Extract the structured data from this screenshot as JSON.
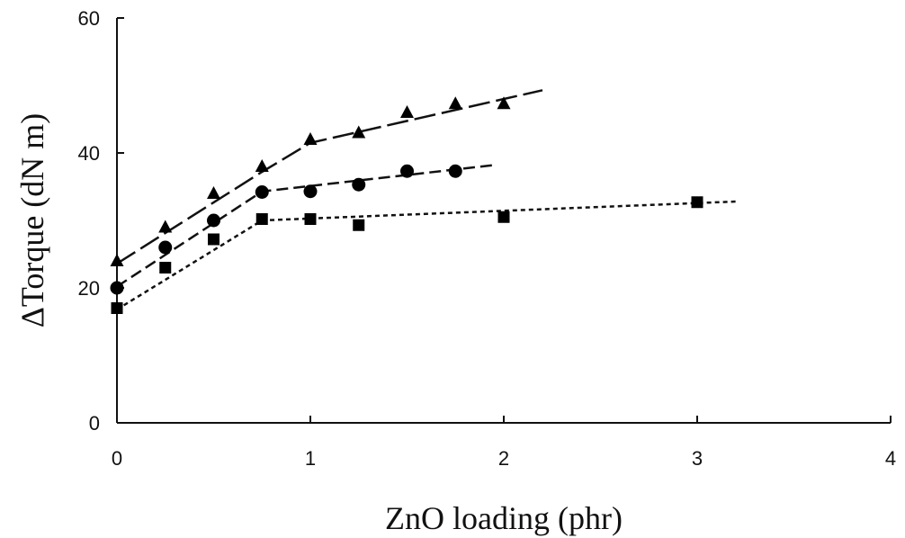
{
  "chart_data": {
    "type": "line",
    "xlabel": "ZnO loading (phr)",
    "ylabel": "ΔTorque (dN m)",
    "xlim": [
      0,
      4
    ],
    "ylim": [
      0,
      60
    ],
    "x_ticks": [
      "0",
      "1",
      "2",
      "3",
      "4"
    ],
    "y_ticks": [
      "0",
      "20",
      "40",
      "60"
    ],
    "grid": false,
    "legend": "none",
    "series": [
      {
        "marker": "triangle",
        "dash": "long-dash",
        "points": [
          [
            0,
            24
          ],
          [
            0.25,
            29
          ],
          [
            0.5,
            34
          ],
          [
            0.75,
            38
          ],
          [
            1.0,
            42
          ],
          [
            1.25,
            43
          ],
          [
            1.5,
            46
          ],
          [
            1.75,
            47.3
          ],
          [
            2.0,
            47.3
          ]
        ],
        "trend": [
          [
            0,
            23.6
          ],
          [
            0.75,
            37.2
          ],
          [
            1.0,
            41.5
          ],
          [
            2.2,
            49.3
          ]
        ]
      },
      {
        "marker": "circle",
        "dash": "medium-dash",
        "points": [
          [
            0,
            20
          ],
          [
            0.25,
            26
          ],
          [
            0.5,
            30
          ],
          [
            0.75,
            34.2
          ],
          [
            1.0,
            34.3
          ],
          [
            1.25,
            35.3
          ],
          [
            1.5,
            37.3
          ],
          [
            1.75,
            37.3
          ]
        ],
        "trend": [
          [
            0,
            20.2
          ],
          [
            0.75,
            34.3
          ],
          [
            1.95,
            38.2
          ]
        ]
      },
      {
        "marker": "square",
        "dash": "short-dash",
        "points": [
          [
            0,
            17
          ],
          [
            0.25,
            23
          ],
          [
            0.5,
            27.2
          ],
          [
            0.75,
            30.2
          ],
          [
            1.0,
            30.2
          ],
          [
            1.25,
            29.3
          ],
          [
            2.0,
            30.5
          ],
          [
            3.0,
            32.7
          ]
        ],
        "trend": [
          [
            0,
            16.8
          ],
          [
            0.75,
            30.0
          ],
          [
            3.2,
            32.8
          ]
        ]
      }
    ]
  }
}
